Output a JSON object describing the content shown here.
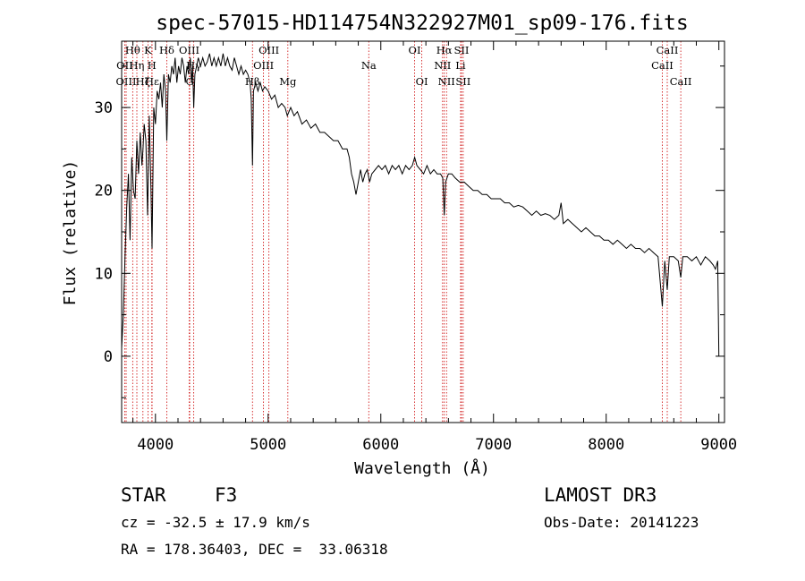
{
  "chart_data": {
    "type": "line",
    "title": "spec-57015-HD114754N322927M01_sp09-176.fits",
    "xlabel": "Wavelength (Å)",
    "ylabel": "Flux (relative)",
    "xlim": [
      3700,
      9050
    ],
    "ylim": [
      -8,
      38
    ],
    "xticks": [
      4000,
      5000,
      6000,
      7000,
      8000,
      9000
    ],
    "yticks": [
      0,
      10,
      20,
      30
    ],
    "grid": false,
    "line_color": "#000000",
    "marker_color": "#cc0000",
    "spectrum": [
      [
        3700,
        1
      ],
      [
        3715,
        5
      ],
      [
        3730,
        12
      ],
      [
        3745,
        18
      ],
      [
        3760,
        22
      ],
      [
        3775,
        14
      ],
      [
        3790,
        24
      ],
      [
        3805,
        20
      ],
      [
        3820,
        19
      ],
      [
        3835,
        26
      ],
      [
        3850,
        22
      ],
      [
        3865,
        27
      ],
      [
        3880,
        23
      ],
      [
        3890,
        25
      ],
      [
        3900,
        28
      ],
      [
        3915,
        26
      ],
      [
        3930,
        17
      ],
      [
        3945,
        29
      ],
      [
        3960,
        20
      ],
      [
        3970,
        13
      ],
      [
        3985,
        30
      ],
      [
        4000,
        28
      ],
      [
        4015,
        32
      ],
      [
        4030,
        31
      ],
      [
        4045,
        33
      ],
      [
        4060,
        30
      ],
      [
        4075,
        34
      ],
      [
        4090,
        32
      ],
      [
        4101,
        26
      ],
      [
        4115,
        34
      ],
      [
        4130,
        33
      ],
      [
        4145,
        35
      ],
      [
        4160,
        34
      ],
      [
        4175,
        36
      ],
      [
        4190,
        33
      ],
      [
        4205,
        35
      ],
      [
        4220,
        34
      ],
      [
        4235,
        36
      ],
      [
        4250,
        35
      ],
      [
        4265,
        33
      ],
      [
        4280,
        35
      ],
      [
        4295,
        34
      ],
      [
        4310,
        36
      ],
      [
        4320,
        33
      ],
      [
        4330,
        35
      ],
      [
        4340,
        30
      ],
      [
        4350,
        34
      ],
      [
        4365,
        35
      ],
      [
        4380,
        36
      ],
      [
        4400,
        35
      ],
      [
        4420,
        36
      ],
      [
        4440,
        35
      ],
      [
        4460,
        35.5
      ],
      [
        4480,
        36.5
      ],
      [
        4500,
        35
      ],
      [
        4520,
        36
      ],
      [
        4540,
        35
      ],
      [
        4560,
        36
      ],
      [
        4580,
        35
      ],
      [
        4600,
        36.5
      ],
      [
        4620,
        35
      ],
      [
        4640,
        36
      ],
      [
        4660,
        35
      ],
      [
        4680,
        34.5
      ],
      [
        4700,
        36
      ],
      [
        4720,
        35
      ],
      [
        4740,
        34
      ],
      [
        4760,
        35
      ],
      [
        4780,
        34
      ],
      [
        4800,
        34.5
      ],
      [
        4820,
        34
      ],
      [
        4840,
        33
      ],
      [
        4850,
        31
      ],
      [
        4861,
        23
      ],
      [
        4870,
        32
      ],
      [
        4890,
        33
      ],
      [
        4910,
        32
      ],
      [
        4930,
        33
      ],
      [
        4950,
        32
      ],
      [
        4970,
        32.5
      ],
      [
        5000,
        32
      ],
      [
        5030,
        31
      ],
      [
        5060,
        31.5
      ],
      [
        5090,
        30
      ],
      [
        5120,
        30.5
      ],
      [
        5150,
        30
      ],
      [
        5170,
        29
      ],
      [
        5200,
        30
      ],
      [
        5230,
        29
      ],
      [
        5260,
        29.5
      ],
      [
        5300,
        28
      ],
      [
        5340,
        28.5
      ],
      [
        5380,
        27.5
      ],
      [
        5420,
        28
      ],
      [
        5460,
        27
      ],
      [
        5500,
        27
      ],
      [
        5540,
        26.5
      ],
      [
        5580,
        26
      ],
      [
        5620,
        26
      ],
      [
        5660,
        25
      ],
      [
        5700,
        25
      ],
      [
        5720,
        24
      ],
      [
        5740,
        22
      ],
      [
        5760,
        21
      ],
      [
        5780,
        19.5
      ],
      [
        5800,
        21
      ],
      [
        5820,
        22.5
      ],
      [
        5840,
        21
      ],
      [
        5860,
        22
      ],
      [
        5880,
        22.5
      ],
      [
        5900,
        21
      ],
      [
        5920,
        22
      ],
      [
        5950,
        22.5
      ],
      [
        5980,
        23
      ],
      [
        6010,
        22.5
      ],
      [
        6040,
        23
      ],
      [
        6070,
        22
      ],
      [
        6100,
        23
      ],
      [
        6130,
        22.5
      ],
      [
        6160,
        23
      ],
      [
        6190,
        22
      ],
      [
        6220,
        23
      ],
      [
        6250,
        22.5
      ],
      [
        6280,
        23
      ],
      [
        6300,
        24
      ],
      [
        6320,
        23
      ],
      [
        6350,
        22.5
      ],
      [
        6380,
        22
      ],
      [
        6410,
        23
      ],
      [
        6440,
        22
      ],
      [
        6470,
        22.5
      ],
      [
        6500,
        22
      ],
      [
        6530,
        22
      ],
      [
        6550,
        21.5
      ],
      [
        6563,
        17
      ],
      [
        6575,
        21
      ],
      [
        6600,
        22
      ],
      [
        6630,
        22
      ],
      [
        6660,
        21.5
      ],
      [
        6700,
        21
      ],
      [
        6740,
        21
      ],
      [
        6780,
        20.5
      ],
      [
        6820,
        20
      ],
      [
        6860,
        20
      ],
      [
        6900,
        19.5
      ],
      [
        6940,
        19.5
      ],
      [
        6980,
        19
      ],
      [
        7020,
        19
      ],
      [
        7060,
        19
      ],
      [
        7100,
        18.5
      ],
      [
        7140,
        18.5
      ],
      [
        7180,
        18
      ],
      [
        7220,
        18.2
      ],
      [
        7260,
        18
      ],
      [
        7300,
        17.5
      ],
      [
        7340,
        17
      ],
      [
        7380,
        17.5
      ],
      [
        7420,
        17
      ],
      [
        7460,
        17.2
      ],
      [
        7500,
        17
      ],
      [
        7540,
        16.5
      ],
      [
        7580,
        17
      ],
      [
        7600,
        18.5
      ],
      [
        7620,
        16
      ],
      [
        7660,
        16.5
      ],
      [
        7700,
        16
      ],
      [
        7740,
        15.5
      ],
      [
        7780,
        15
      ],
      [
        7820,
        15.5
      ],
      [
        7860,
        15
      ],
      [
        7900,
        14.5
      ],
      [
        7940,
        14.5
      ],
      [
        7980,
        14
      ],
      [
        8020,
        14
      ],
      [
        8060,
        13.5
      ],
      [
        8100,
        14
      ],
      [
        8140,
        13.5
      ],
      [
        8180,
        13
      ],
      [
        8220,
        13.5
      ],
      [
        8260,
        13
      ],
      [
        8300,
        13
      ],
      [
        8340,
        12.5
      ],
      [
        8380,
        13
      ],
      [
        8420,
        12.5
      ],
      [
        8460,
        12
      ],
      [
        8498,
        6
      ],
      [
        8520,
        11.5
      ],
      [
        8542,
        8
      ],
      [
        8560,
        12
      ],
      [
        8600,
        12
      ],
      [
        8640,
        11.5
      ],
      [
        8662,
        9.5
      ],
      [
        8680,
        12
      ],
      [
        8720,
        12
      ],
      [
        8760,
        11.5
      ],
      [
        8800,
        12
      ],
      [
        8840,
        11
      ],
      [
        8880,
        12
      ],
      [
        8920,
        11.5
      ],
      [
        8950,
        11
      ],
      [
        8970,
        10.5
      ],
      [
        8990,
        11.5
      ],
      [
        9000,
        0
      ]
    ],
    "line_markers": [
      {
        "label": "Hθ",
        "x": 3798,
        "row": 0
      },
      {
        "label": "OII",
        "x": 3727,
        "row": 1
      },
      {
        "label": "OIII",
        "x": 3740,
        "row": 2
      },
      {
        "label": "Hη",
        "x": 3835,
        "row": 1
      },
      {
        "label": "Hζ",
        "x": 3889,
        "row": 2
      },
      {
        "label": "K",
        "x": 3934,
        "row": 0
      },
      {
        "label": "H",
        "x": 3968,
        "row": 1
      },
      {
        "label": "Hε",
        "x": 3970,
        "row": 2
      },
      {
        "label": "Hδ",
        "x": 4101,
        "row": 0
      },
      {
        "label": "OIII",
        "x": 4300,
        "row": 0
      },
      {
        "label": "G",
        "x": 4304,
        "row": 2
      },
      {
        "label": "Hγ",
        "x": 4340,
        "row": 1
      },
      {
        "label": "Hβ",
        "x": 4861,
        "row": 2
      },
      {
        "label": "OIII",
        "x": 4959,
        "row": 1
      },
      {
        "label": "OIII",
        "x": 5007,
        "row": 0
      },
      {
        "label": "Mg",
        "x": 5175,
        "row": 2
      },
      {
        "label": "Na",
        "x": 5893,
        "row": 1
      },
      {
        "label": "OI",
        "x": 6300,
        "row": 0
      },
      {
        "label": "OI",
        "x": 6364,
        "row": 2
      },
      {
        "label": "NII",
        "x": 6548,
        "row": 1
      },
      {
        "label": "Hα",
        "x": 6563,
        "row": 0
      },
      {
        "label": "NII",
        "x": 6583,
        "row": 2
      },
      {
        "label": "Li",
        "x": 6708,
        "row": 1
      },
      {
        "label": "SII",
        "x": 6716,
        "row": 0
      },
      {
        "label": "SII",
        "x": 6731,
        "row": 2
      },
      {
        "label": "CaII",
        "x": 8498,
        "row": 1
      },
      {
        "label": "CaII",
        "x": 8542,
        "row": 0
      },
      {
        "label": "CaII",
        "x": 8662,
        "row": 2
      }
    ]
  },
  "info": {
    "object_class": "STAR",
    "subclass": "F3",
    "survey": "LAMOST DR3",
    "redshift": "cz = -32.5 ± 17.9 km/s",
    "obs_date": "Obs-Date: 20141223",
    "coords": "RA = 178.36403, DEC =  33.06318"
  }
}
